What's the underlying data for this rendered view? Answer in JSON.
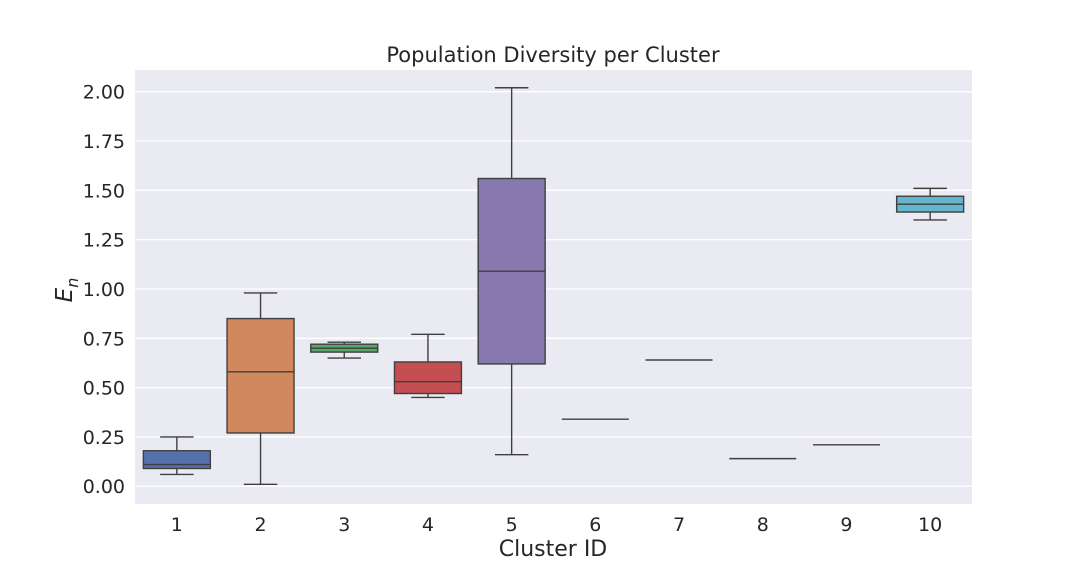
{
  "chart_data": {
    "type": "box",
    "title": "Population Diversity per Cluster",
    "xlabel": "Cluster ID",
    "ylabel": "E",
    "ylabel_sub": "n",
    "ylim": [
      -0.09,
      2.11
    ],
    "yticks": [
      "0.00",
      "0.25",
      "0.50",
      "0.75",
      "1.00",
      "1.25",
      "1.50",
      "1.75",
      "2.00"
    ],
    "grid": true,
    "background": "#eaeaf2",
    "categories": [
      "1",
      "2",
      "3",
      "4",
      "5",
      "6",
      "7",
      "8",
      "9",
      "10"
    ],
    "boxes": [
      {
        "category": "1",
        "min": 0.06,
        "q1": 0.09,
        "median": 0.11,
        "q3": 0.18,
        "max": 0.25,
        "color": "#5471ab"
      },
      {
        "category": "2",
        "min": 0.01,
        "q1": 0.27,
        "median": 0.58,
        "q3": 0.85,
        "max": 0.98,
        "color": "#d1885c"
      },
      {
        "category": "3",
        "min": 0.65,
        "q1": 0.68,
        "median": 0.7,
        "q3": 0.72,
        "max": 0.73,
        "color": "#59a869"
      },
      {
        "category": "4",
        "min": 0.45,
        "q1": 0.47,
        "median": 0.53,
        "q3": 0.63,
        "max": 0.77,
        "color": "#c44e52"
      },
      {
        "category": "5",
        "min": 0.16,
        "q1": 0.62,
        "median": 1.09,
        "q3": 1.56,
        "max": 2.02,
        "color": "#8779ae"
      },
      {
        "category": "6",
        "min": 0.34,
        "q1": 0.34,
        "median": 0.34,
        "q3": 0.34,
        "max": 0.34,
        "color": "#8c6d5c"
      },
      {
        "category": "7",
        "min": 0.64,
        "q1": 0.64,
        "median": 0.64,
        "q3": 0.64,
        "max": 0.64,
        "color": "#dc8ec3"
      },
      {
        "category": "8",
        "min": 0.14,
        "q1": 0.14,
        "median": 0.14,
        "q3": 0.14,
        "max": 0.14,
        "color": "#8c8c8c"
      },
      {
        "category": "9",
        "min": 0.21,
        "q1": 0.21,
        "median": 0.21,
        "q3": 0.21,
        "max": 0.21,
        "color": "#ccb974"
      },
      {
        "category": "10",
        "min": 1.35,
        "q1": 1.39,
        "median": 1.43,
        "q3": 1.47,
        "max": 1.51,
        "color": "#64b5cd"
      }
    ]
  }
}
